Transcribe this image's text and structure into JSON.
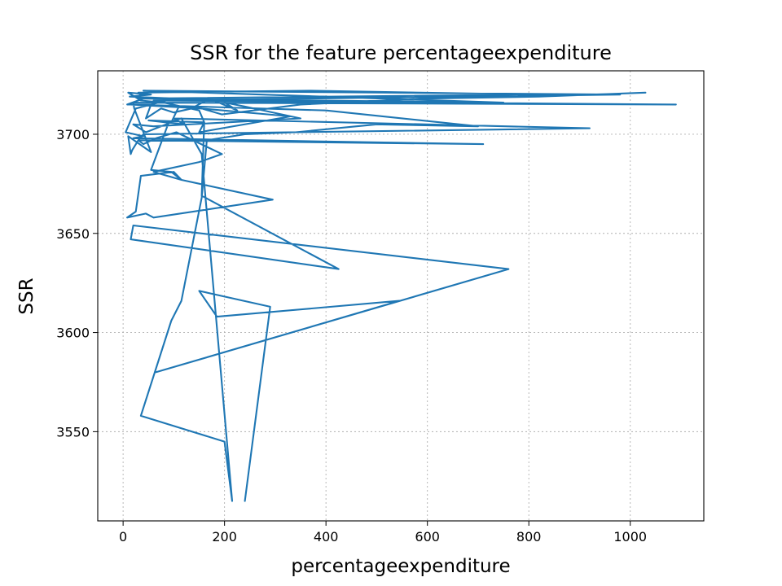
{
  "chart_data": {
    "type": "line",
    "title": "SSR for the feature percentageexpenditure",
    "xlabel": "percentageexpenditure",
    "ylabel": "SSR",
    "xlim": [
      -50,
      1145
    ],
    "ylim": [
      3505,
      3732
    ],
    "grid": true,
    "x_ticks": [
      0,
      200,
      400,
      600,
      800,
      1000
    ],
    "y_ticks": [
      3550,
      3600,
      3650,
      3700
    ],
    "series": [
      {
        "color": "#1f77b4",
        "points": [
          [
            240,
            3515
          ],
          [
            290,
            3613
          ],
          [
            150,
            3621
          ],
          [
            185,
            3608
          ],
          [
            545,
            3616
          ],
          [
            65,
            3580
          ],
          [
            760,
            3632
          ],
          [
            20,
            3654
          ],
          [
            15,
            3647
          ],
          [
            425,
            3632
          ],
          [
            155,
            3669
          ],
          [
            160,
            3706
          ],
          [
            150,
            3712
          ],
          [
            80,
            3716
          ],
          [
            35,
            3717
          ],
          [
            10,
            3721
          ],
          [
            55,
            3720
          ],
          [
            13,
            3719
          ],
          [
            100,
            3718
          ],
          [
            25,
            3713
          ],
          [
            5,
            3701
          ],
          [
            40,
            3699
          ],
          [
            20,
            3698
          ],
          [
            710,
            3695
          ],
          [
            30,
            3697
          ],
          [
            40,
            3700
          ],
          [
            920,
            3703
          ],
          [
            100,
            3708
          ],
          [
            120,
            3705
          ],
          [
            50,
            3707
          ],
          [
            160,
            3706
          ],
          [
            150,
            3701
          ],
          [
            330,
            3709
          ],
          [
            110,
            3714
          ],
          [
            95,
            3706
          ],
          [
            45,
            3701
          ],
          [
            20,
            3705
          ],
          [
            60,
            3704
          ],
          [
            350,
            3708
          ],
          [
            240,
            3714
          ],
          [
            200,
            3716
          ],
          [
            225,
            3712
          ],
          [
            170,
            3718
          ],
          [
            135,
            3713
          ],
          [
            100,
            3711
          ],
          [
            75,
            3713
          ],
          [
            45,
            3708
          ],
          [
            55,
            3715
          ],
          [
            8,
            3715
          ],
          [
            40,
            3718
          ],
          [
            30,
            3721
          ],
          [
            370,
            3722
          ],
          [
            810,
            3720
          ],
          [
            30,
            3718
          ],
          [
            750,
            3716
          ],
          [
            40,
            3722
          ],
          [
            980,
            3720
          ],
          [
            60,
            3717
          ],
          [
            1090,
            3715
          ],
          [
            20,
            3716
          ],
          [
            22,
            3713
          ],
          [
            55,
            3691
          ],
          [
            10,
            3699
          ],
          [
            15,
            3690
          ],
          [
            18,
            3692
          ],
          [
            30,
            3697
          ],
          [
            40,
            3695
          ],
          [
            65,
            3698
          ],
          [
            105,
            3701
          ],
          [
            195,
            3690
          ],
          [
            150,
            3686
          ],
          [
            60,
            3681
          ],
          [
            115,
            3677
          ],
          [
            100,
            3681
          ],
          [
            35,
            3679
          ],
          [
            25,
            3661
          ],
          [
            8,
            3658
          ],
          [
            45,
            3660
          ],
          [
            60,
            3658
          ],
          [
            295,
            3667
          ],
          [
            115,
            3677
          ],
          [
            95,
            3681
          ],
          [
            55,
            3682
          ],
          [
            90,
            3706
          ],
          [
            115,
            3708
          ],
          [
            155,
            3690
          ],
          [
            215,
            3515
          ],
          [
            200,
            3545
          ],
          [
            35,
            3558
          ],
          [
            95,
            3606
          ],
          [
            115,
            3616
          ],
          [
            155,
            3668
          ],
          [
            165,
            3697
          ],
          [
            240,
            3700
          ],
          [
            340,
            3701
          ],
          [
            500,
            3705
          ],
          [
            700,
            3704
          ],
          [
            400,
            3712
          ],
          [
            15,
            3715
          ],
          [
            155,
            3713
          ],
          [
            195,
            3710
          ],
          [
            350,
            3715
          ],
          [
            600,
            3718
          ],
          [
            820,
            3719
          ],
          [
            1030,
            3721
          ]
        ]
      }
    ]
  }
}
